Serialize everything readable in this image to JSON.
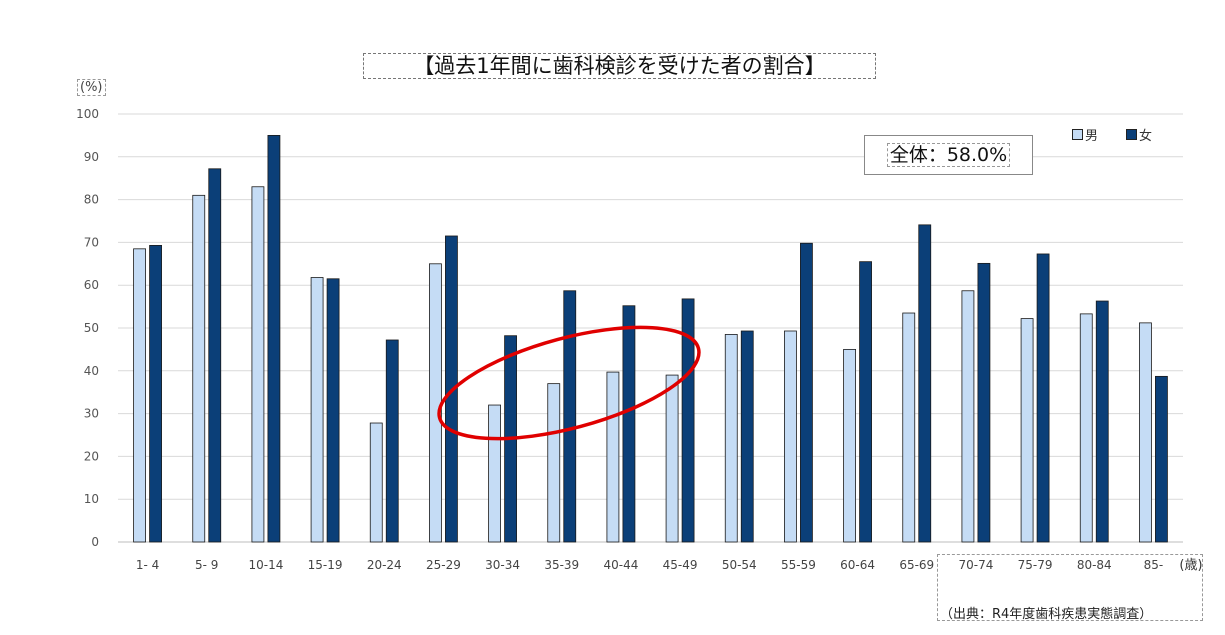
{
  "title": "【過去1年間に歯科検診を受けた者の割合】",
  "y_unit": "(%)",
  "x_unit": "(歳)",
  "overall_label": "全体：58.0%",
  "source": "（出典：R4年度歯科疾患実態調査）",
  "colors": {
    "male": "#c5dcf5",
    "female": "#0b3f78",
    "annotation": "#e00000"
  },
  "chart_data": {
    "type": "bar",
    "title": "【過去1年間に歯科検診を受けた者の割合】",
    "xlabel": "(歳)",
    "ylabel": "(%)",
    "ylim": [
      0,
      100
    ],
    "yticks": [
      0,
      10,
      20,
      30,
      40,
      50,
      60,
      70,
      80,
      90,
      100
    ],
    "grid": true,
    "legend_position": "top-right",
    "categories": [
      "1- 4",
      "5- 9",
      "10-14",
      "15-19",
      "20-24",
      "25-29",
      "30-34",
      "35-39",
      "40-44",
      "45-49",
      "50-54",
      "55-59",
      "60-64",
      "65-69",
      "70-74",
      "75-79",
      "80-84",
      "85-"
    ],
    "series": [
      {
        "name": "男",
        "values": [
          68.5,
          81,
          83,
          61.8,
          27.8,
          65,
          32,
          37,
          39.7,
          39,
          48.5,
          49.3,
          45,
          53.5,
          58.7,
          52.2,
          53.3,
          51.2
        ]
      },
      {
        "name": "女",
        "values": [
          69.3,
          87.2,
          95,
          61.5,
          47.2,
          71.5,
          48.2,
          58.7,
          55.2,
          56.8,
          49.3,
          69.8,
          65.5,
          74.1,
          65.1,
          67.3,
          56.3,
          38.7
        ]
      }
    ]
  }
}
